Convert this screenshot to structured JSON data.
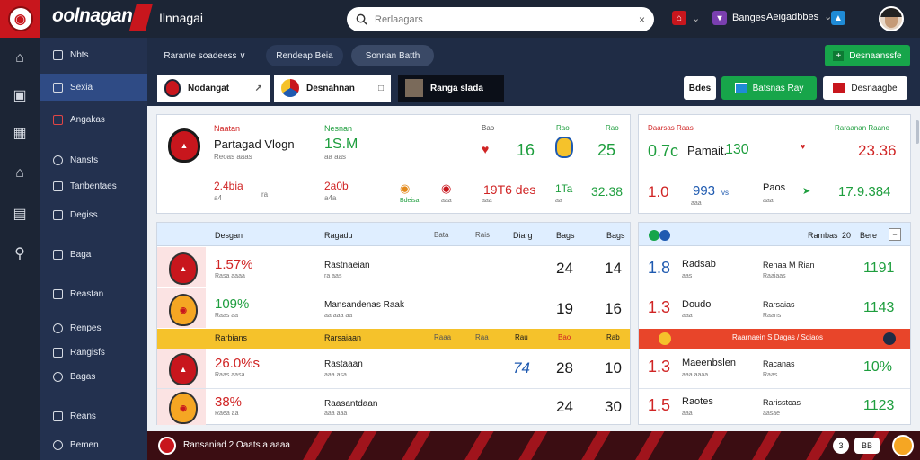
{
  "header": {
    "brand": "oolnagan",
    "brand_sub": "Ilnnagai",
    "search_placeholder": "Rerlaagars",
    "items": [
      {
        "label": "",
        "icon": "home-alert-icon"
      },
      {
        "label": "Banges",
        "icon": "shield-icon"
      },
      {
        "label": "Aeigadbbes",
        "icon": "chevron-down-icon"
      }
    ]
  },
  "sidebar": {
    "items": [
      {
        "label": "Nbts"
      },
      {
        "label": "Sexia"
      },
      {
        "label": "Angakas"
      },
      {
        "label": "Nansts"
      },
      {
        "label": "Tanbentaes"
      },
      {
        "label": "Degiss"
      },
      {
        "label": "Baga"
      },
      {
        "label": "Reastan"
      },
      {
        "label": "Renpes"
      },
      {
        "label": "Rangisfs"
      },
      {
        "label": "Bagas"
      },
      {
        "label": "Reans"
      },
      {
        "label": "Bemen"
      }
    ]
  },
  "subnav": {
    "pill1": "Rarante soadeess",
    "pill1_suffix": "∨",
    "pill2": "Rendeap Beia",
    "pill3": "Sonnan Batth"
  },
  "tabs": [
    {
      "label": "Nodangat",
      "suffix": "↗"
    },
    {
      "label": "Desnahnan",
      "suffix": "□"
    },
    {
      "label": "Ranga slada"
    }
  ],
  "actions": {
    "small": "Bdes",
    "green": "Batsnas Ray",
    "red": "Desnaagbe"
  },
  "top_right_button": "Desnaanssfe",
  "featured": {
    "col1_head": "Naatan",
    "team": "Partagad Vlogn",
    "team_sub": "Reoas aaas",
    "col2_head": "Nesnan",
    "col2_val": "1S.M",
    "col2_sub": "aa  aas",
    "h_bao": "Bao",
    "h_rao": "Rao",
    "h_ao": "Rao",
    "v_mid": "16",
    "v_right": "25",
    "r1_a": "2.4bia",
    "r1_a_sub": "a4",
    "r1_b": "ra",
    "r1_c": "2a0b",
    "r1_c_sub": "a4a",
    "r1_d": "Bdeisa",
    "r1_e": "aaa",
    "r1_f": "aaa",
    "r1_g": "19T6 des",
    "r1_h": "1Ta",
    "r1_h_sub": "aa",
    "r1_i": "32.38"
  },
  "side_card": {
    "h_left": "Daarsas Raas",
    "h_right": "Raraanan Raane",
    "v1": "0.7c",
    "name": "Pamait.",
    "v2": "130",
    "v3": "23.36",
    "r_a": "1.0",
    "r_b": "993",
    "r_b_sub": "vs",
    "r_b_sub2": "aaa",
    "r_c": "Paos",
    "r_c_sub": "aaa",
    "r_d": "17.9.384"
  },
  "table": {
    "headers": [
      "Desgan",
      "Ragadu",
      "Bata",
      "Rais",
      "Diarg",
      "Bags",
      "Bags"
    ],
    "rows": [
      {
        "pct": "1.57%",
        "pct_sub": "Rasa aaaa",
        "name": "Rastnaeian",
        "name_sub": "ra  aas",
        "a": "",
        "b": "24",
        "c": "14"
      },
      {
        "pct": "109%",
        "pct_sub": "Raas  aa",
        "name": "Mansandenas  Raak",
        "name_sub": "aa aaa  aa",
        "a": "",
        "b": "19",
        "c": "16"
      },
      {
        "pct": "26.0%s",
        "pct_sub": "Raas aasa",
        "name": "Rastaaan",
        "name_sub": "aaa asa",
        "a": "74",
        "b": "28",
        "c": "10"
      },
      {
        "pct": "38%",
        "pct_sub": "Raea  aa",
        "name": "Raasantdaan",
        "name_sub": "aaa   aaa",
        "a": "",
        "b": "24",
        "c": "30"
      }
    ],
    "highlight": {
      "a": "Rarbians",
      "b": "Rarsaiaan",
      "c": "Raaa",
      "d": "Raa",
      "e": "Rau",
      "f": "Bao",
      "g": "Rab"
    }
  },
  "right_table": {
    "header": [
      "Rambas",
      "20",
      "Bere"
    ],
    "rows": [
      {
        "v": "1.8",
        "name": "Radsab",
        "name_sub": "aas",
        "team": "Renaa M Rian",
        "team_sub": "Raaiaas",
        "val": "1191"
      },
      {
        "v": "1.3",
        "name": "Doudo",
        "name_sub": "aaa",
        "team": "Rarsaias",
        "team_sub": "Raans",
        "val": "1143"
      },
      {
        "v": "1.3",
        "name": "Maeenbslen",
        "name_sub": "aaa  aaaa",
        "team": "Racanas",
        "team_sub": "Raas",
        "val": "10%"
      },
      {
        "v": "1.5",
        "name": "Raotes",
        "name_sub": "aaa",
        "team": "Rarisstcas",
        "team_sub": "aasae",
        "val": "1123"
      }
    ],
    "highlight": "Raarnaein S Dagas / Sdiaos"
  },
  "footer": {
    "text": "Ransaniad 2 Oaats a aaaa",
    "badge": "3",
    "badge2": "BB"
  },
  "colors": {
    "brand_red": "#c8161d",
    "nav_dark": "#1c2535",
    "sidebar": "#23314f",
    "active": "#2f4b85",
    "green": "#1e9e3e",
    "red": "#d02424",
    "highlight_yellow": "#f5c22b"
  }
}
